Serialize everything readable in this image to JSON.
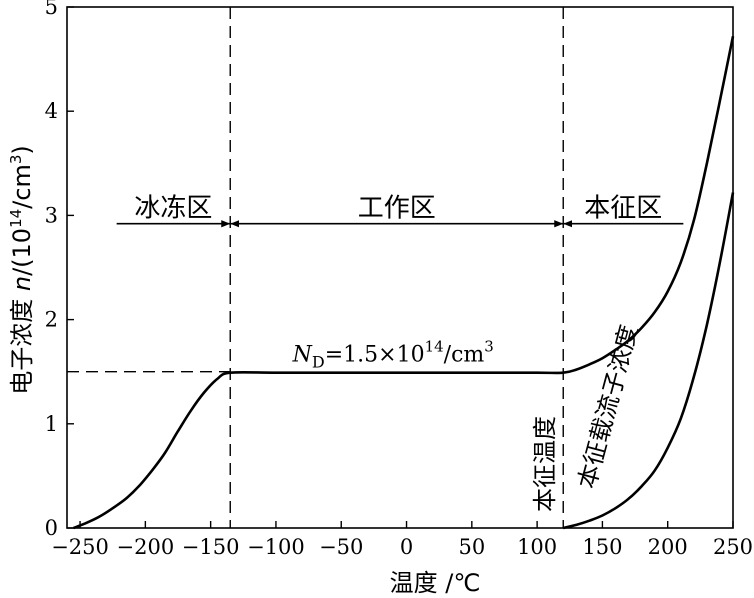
{
  "chart_data": {
    "type": "line",
    "xlabel": "温度 /℃",
    "ylabel_prefix": "电子浓度 ",
    "ylabel_var": "n",
    "ylabel_unit_open": "/(10",
    "ylabel_unit_exp": "14",
    "ylabel_unit_mid": "/cm",
    "ylabel_unit_exp2": "3",
    "ylabel_unit_close": ")",
    "xlim": [
      -260,
      250
    ],
    "ylim": [
      0,
      5
    ],
    "x_ticks": [
      -250,
      -200,
      -150,
      -100,
      -50,
      0,
      50,
      100,
      150,
      200,
      250
    ],
    "x_tick_labels": [
      "−250",
      "−200",
      "−150",
      "−100",
      "−50",
      "0",
      "50",
      "100",
      "150",
      "200",
      "250"
    ],
    "y_ticks": [
      0,
      1,
      2,
      3,
      4,
      5
    ],
    "y_tick_labels": [
      "0",
      "1",
      "2",
      "3",
      "4",
      "5"
    ],
    "boundaries": [
      -135,
      120
    ],
    "nd_level": 1.5,
    "nd_annotation": {
      "main": "N",
      "sub": "D",
      "mid": "=1.5×10",
      "exp": "14",
      "unit": "/cm",
      "exp2": "3",
      "x": 20,
      "y": 1.5
    },
    "regions": [
      {
        "label": "冰冻区",
        "x_from": -222,
        "x_to": -135,
        "arrow": "right"
      },
      {
        "label": "工作区",
        "x_from": -135,
        "x_to": 120,
        "arrow": "both"
      },
      {
        "label": "本征区",
        "x_from": 120,
        "x_to": 212,
        "arrow": "left"
      }
    ],
    "region_arrow_y": 2.92,
    "series": [
      {
        "name": "电子浓度",
        "x": [
          -255,
          -245,
          -235,
          -225,
          -215,
          -205,
          -195,
          -185,
          -175,
          -165,
          -155,
          -145,
          -135,
          -100,
          -50,
          0,
          50,
          100,
          120,
          130,
          140,
          150,
          160,
          170,
          180,
          190,
          200,
          210,
          220,
          230,
          240,
          250
        ],
        "y": [
          0.0,
          0.05,
          0.11,
          0.19,
          0.28,
          0.4,
          0.55,
          0.72,
          0.93,
          1.13,
          1.3,
          1.43,
          1.49,
          1.49,
          1.49,
          1.49,
          1.49,
          1.49,
          1.49,
          1.52,
          1.57,
          1.63,
          1.71,
          1.8,
          1.92,
          2.07,
          2.27,
          2.55,
          2.95,
          3.5,
          4.1,
          4.72
        ]
      },
      {
        "name": "本征载流子浓度",
        "x": [
          120,
          130,
          140,
          150,
          160,
          170,
          180,
          190,
          200,
          210,
          220,
          230,
          240,
          250
        ],
        "y": [
          0.0,
          0.03,
          0.07,
          0.12,
          0.19,
          0.28,
          0.4,
          0.55,
          0.77,
          1.05,
          1.45,
          1.95,
          2.55,
          3.22
        ]
      }
    ],
    "curve_labels": [
      {
        "text": "本征载流子浓度"
      },
      {
        "text": "本征温度"
      }
    ]
  }
}
